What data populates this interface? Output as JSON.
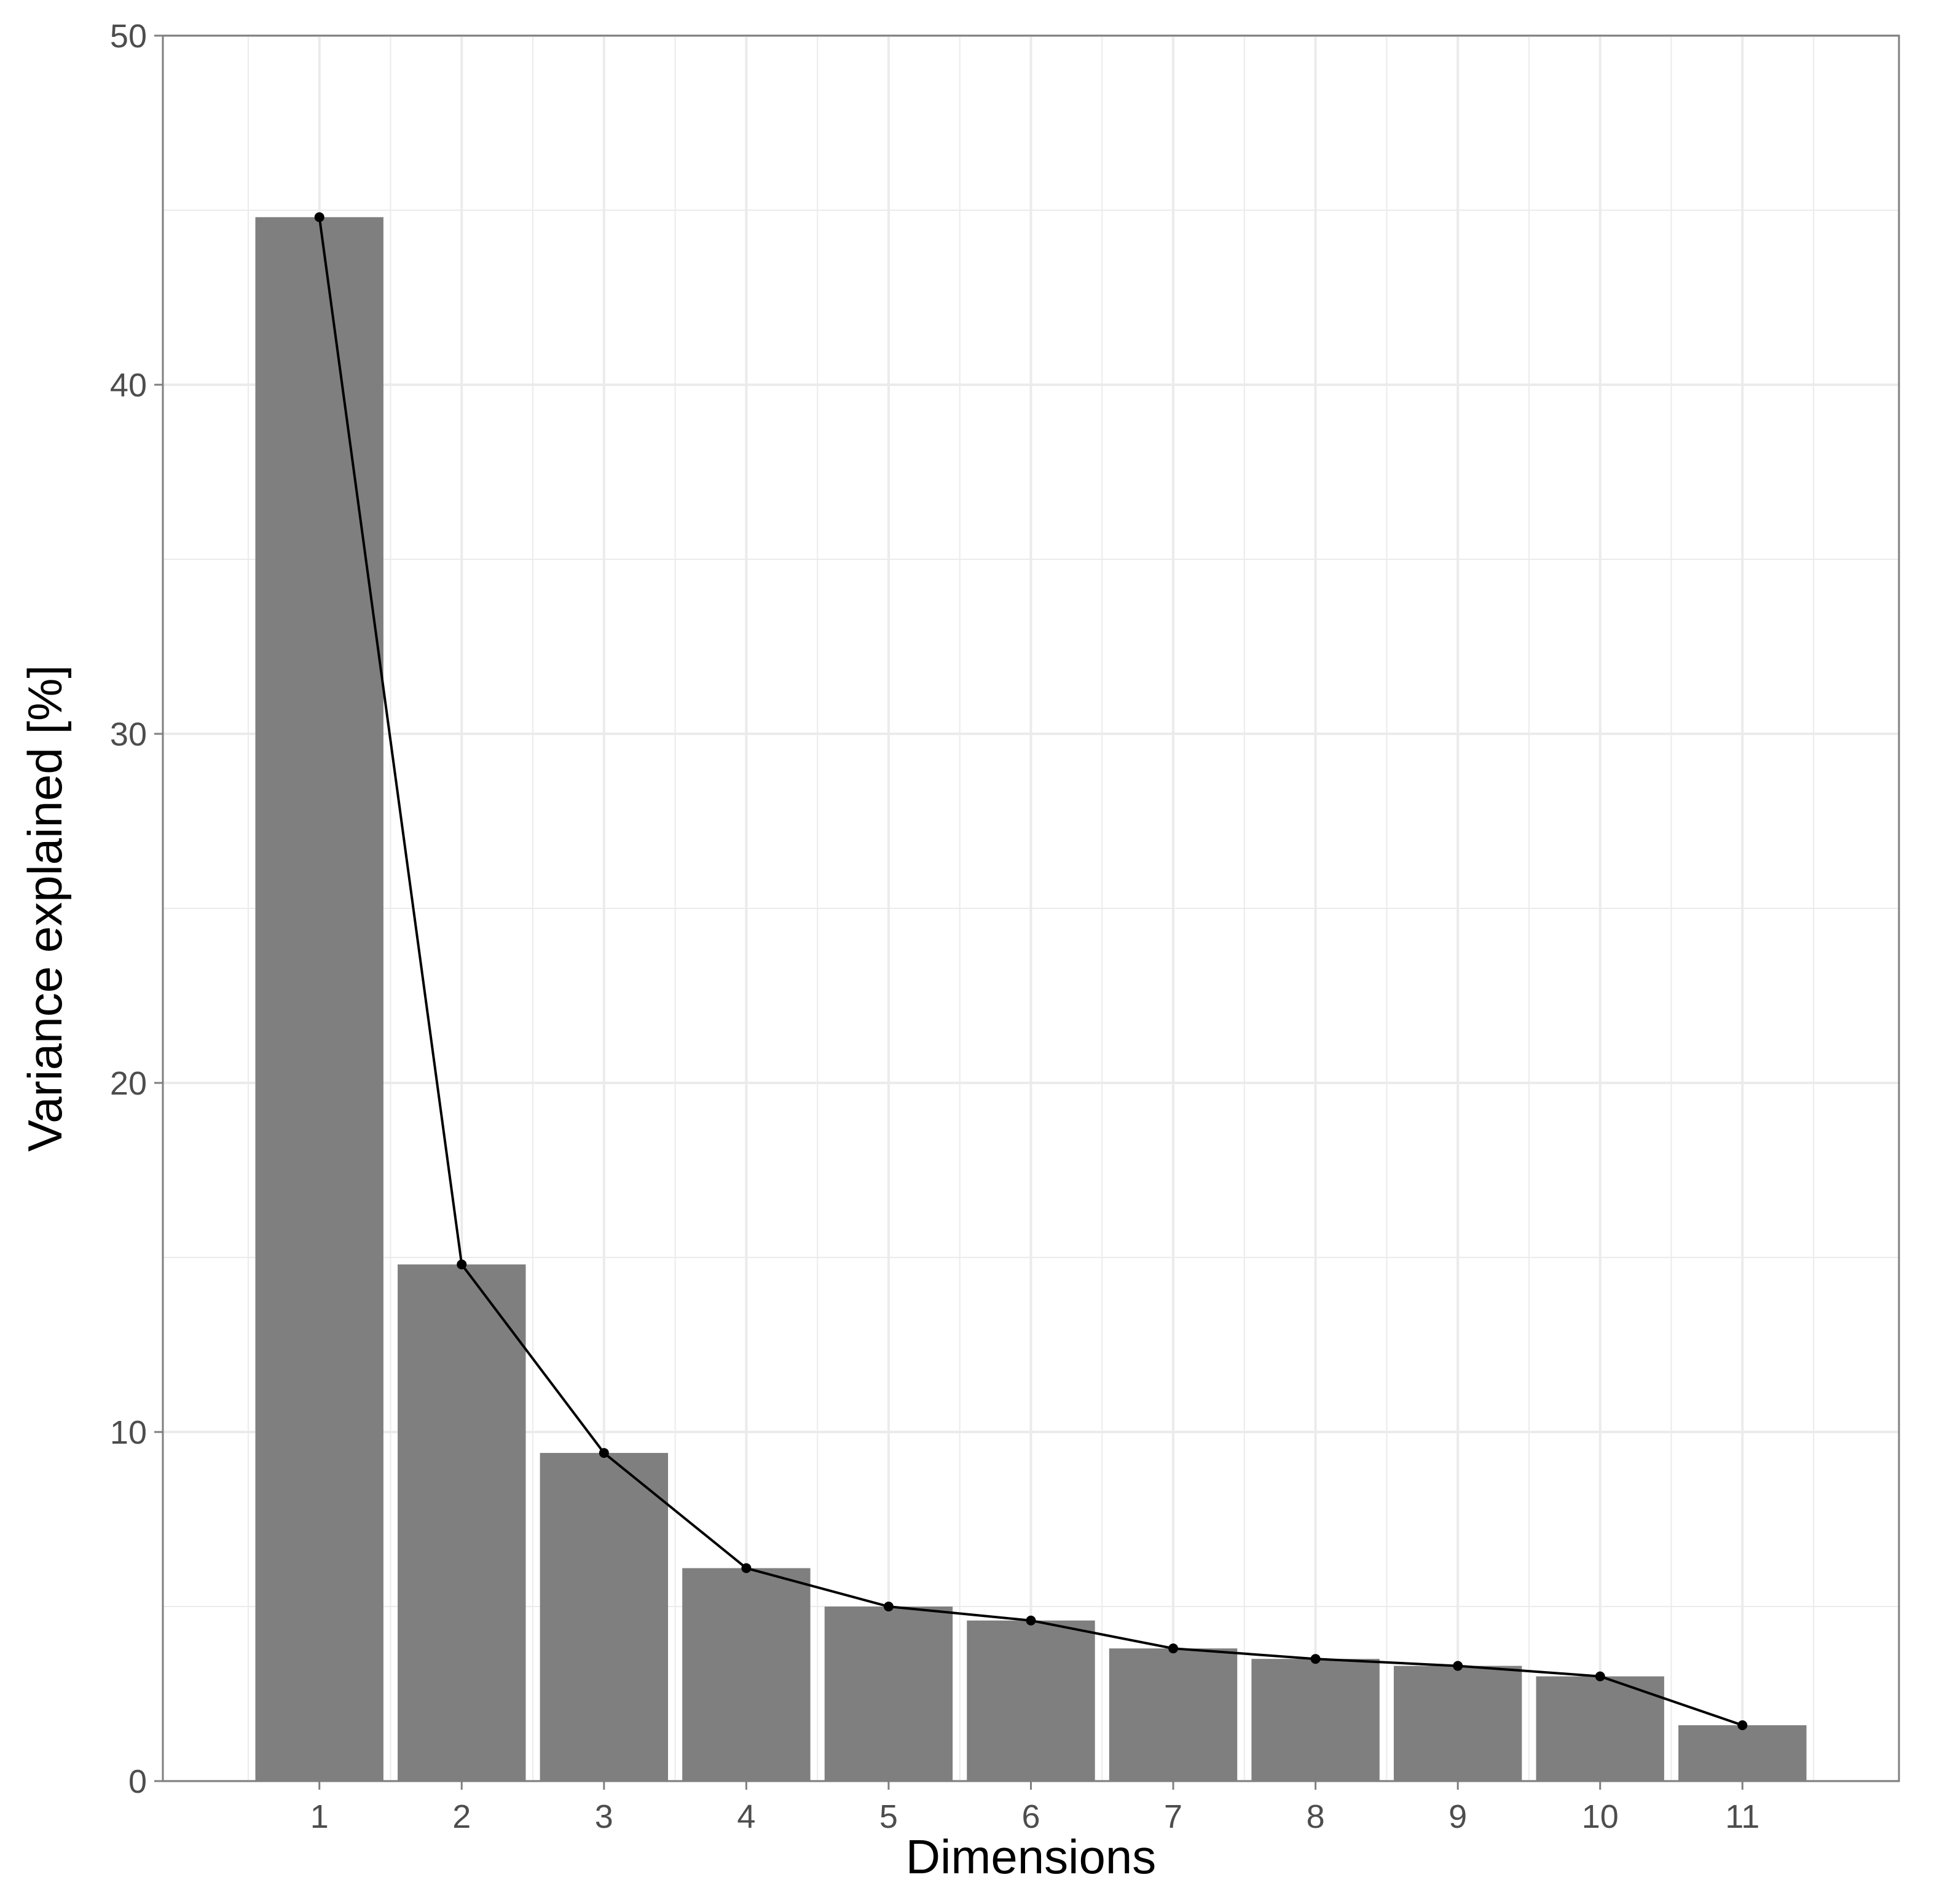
{
  "chart_data": {
    "type": "bar",
    "title": "",
    "xlabel": "Dimensions",
    "ylabel": "Variance explained [%]",
    "categories": [
      "1",
      "2",
      "3",
      "4",
      "5",
      "6",
      "7",
      "8",
      "9",
      "10",
      "11"
    ],
    "values": [
      44.8,
      14.8,
      9.4,
      6.1,
      5.0,
      4.6,
      3.8,
      3.5,
      3.3,
      3.0,
      1.6
    ],
    "line_overlay": true,
    "ylim": [
      0,
      50
    ],
    "yticks": [
      "0",
      "10",
      "20",
      "30",
      "40",
      "50"
    ],
    "grid": true,
    "legend": "none",
    "colors": {
      "bar": "#7f7f7f",
      "line": "#000000",
      "point": "#000000",
      "grid": "#ebebeb",
      "panel_border": "#7f7f7f",
      "tick_label": "#4d4d4d"
    }
  }
}
